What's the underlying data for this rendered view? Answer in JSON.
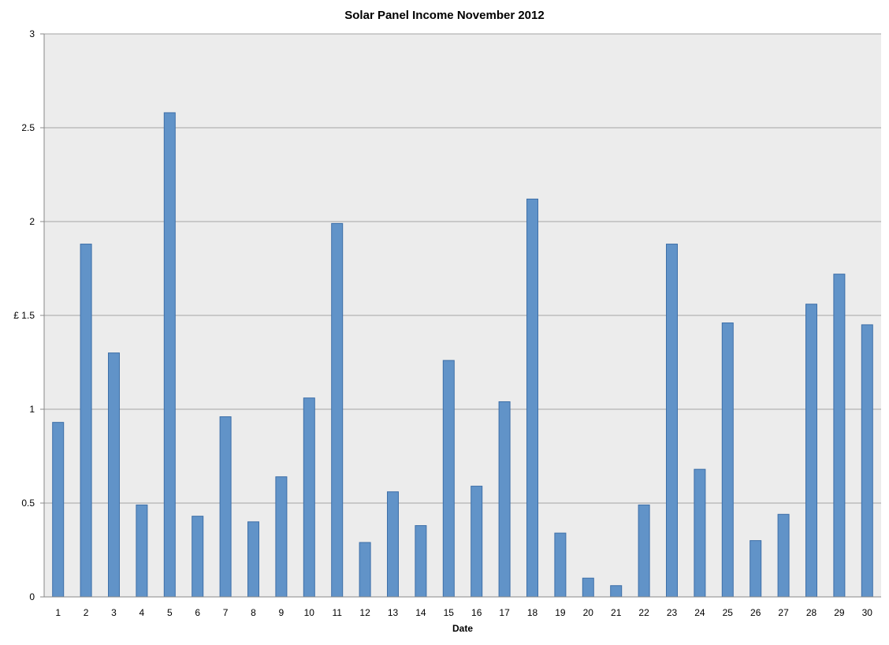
{
  "chart_data": {
    "type": "bar",
    "title": "Solar Panel Income November 2012",
    "xlabel": "Date",
    "ylabel": "£",
    "ylim": [
      0,
      3
    ],
    "yticks": [
      "0",
      "0.5",
      "1",
      "£ 1.5",
      "2",
      "2.5",
      "3"
    ],
    "categories": [
      "1",
      "2",
      "3",
      "4",
      "5",
      "6",
      "7",
      "8",
      "9",
      "10",
      "11",
      "12",
      "13",
      "14",
      "15",
      "16",
      "17",
      "18",
      "19",
      "20",
      "21",
      "22",
      "23",
      "24",
      "25",
      "26",
      "27",
      "28",
      "29",
      "30"
    ],
    "values": [
      0.93,
      1.88,
      1.3,
      0.49,
      2.58,
      0.43,
      0.96,
      0.4,
      0.64,
      1.06,
      1.99,
      0.29,
      0.56,
      0.38,
      1.26,
      0.59,
      1.04,
      2.12,
      0.34,
      0.1,
      0.06,
      0.49,
      1.88,
      0.68,
      1.46,
      0.3,
      0.44,
      1.56,
      1.72,
      1.45
    ],
    "grid": true,
    "legend": "none",
    "colors": {
      "bar_fill": "#6193c8",
      "bar_stroke": "#3d6fa8",
      "plot_bg": "#ececec",
      "grid": "#b3b3b3"
    }
  }
}
